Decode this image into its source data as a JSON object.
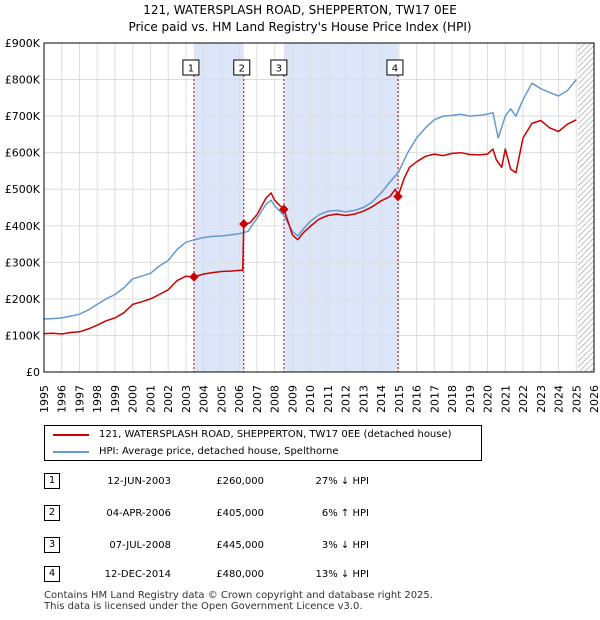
{
  "chart_data": {
    "type": "line",
    "title": "121, WATERSPLASH ROAD, SHEPPERTON, TW17 0EE",
    "subtitle": "Price paid vs. HM Land Registry's House Price Index (HPI)",
    "xlim": [
      1995,
      2026
    ],
    "ylim": [
      0,
      900000
    ],
    "y_ticks": [
      0,
      100000,
      200000,
      300000,
      400000,
      500000,
      600000,
      700000,
      800000,
      900000
    ],
    "y_tick_labels": [
      "£0",
      "£100K",
      "£200K",
      "£300K",
      "£400K",
      "£500K",
      "£600K",
      "£700K",
      "£800K",
      "£900K"
    ],
    "x_ticks": [
      1995,
      1996,
      1997,
      1998,
      1999,
      2000,
      2001,
      2002,
      2003,
      2004,
      2005,
      2006,
      2007,
      2008,
      2009,
      2010,
      2011,
      2012,
      2013,
      2014,
      2015,
      2016,
      2017,
      2018,
      2019,
      2020,
      2021,
      2022,
      2023,
      2024,
      2025,
      2026
    ],
    "x_tick_labels": [
      "1995",
      "1996",
      "1997",
      "1998",
      "1999",
      "2000",
      "2001",
      "2002",
      "2003",
      "2004",
      "2005",
      "2006",
      "2007",
      "2008",
      "2009",
      "2010",
      "2011",
      "2012",
      "2013",
      "2014",
      "2015",
      "2016",
      "2017",
      "2018",
      "2019",
      "2020",
      "2021",
      "2022",
      "2023",
      "2024",
      "2025",
      "2026"
    ],
    "shaded_ranges": [
      [
        2003.45,
        2006.26
      ],
      [
        2008.52,
        2014.95
      ]
    ],
    "hatched_from": 2025.1,
    "series": [
      {
        "name": "121, WATERSPLASH ROAD, SHEPPERTON, TW17 0EE (detached house)",
        "color": "#cc0000",
        "x": [
          1995.0,
          1995.5,
          1996.0,
          1996.5,
          1997.0,
          1997.5,
          1998.0,
          1998.5,
          1999.0,
          1999.5,
          2000.0,
          2000.5,
          2001.0,
          2001.5,
          2002.0,
          2002.5,
          2003.0,
          2003.45,
          2004.0,
          2004.5,
          2005.0,
          2005.5,
          2006.0,
          2006.2,
          2006.26,
          2006.6,
          2007.0,
          2007.5,
          2007.8,
          2008.0,
          2008.3,
          2008.52,
          2008.8,
          2009.0,
          2009.3,
          2009.6,
          2010.0,
          2010.5,
          2011.0,
          2011.5,
          2012.0,
          2012.5,
          2013.0,
          2013.5,
          2014.0,
          2014.5,
          2014.8,
          2014.95,
          2015.3,
          2015.6,
          2016.0,
          2016.5,
          2017.0,
          2017.5,
          2018.0,
          2018.5,
          2019.0,
          2019.5,
          2020.0,
          2020.3,
          2020.5,
          2020.8,
          2021.0,
          2021.3,
          2021.6,
          2022.0,
          2022.5,
          2023.0,
          2023.5,
          2024.0,
          2024.5,
          2025.0
        ],
        "values": [
          105000,
          106000,
          104000,
          108000,
          110000,
          118000,
          128000,
          140000,
          148000,
          162000,
          185000,
          192000,
          200000,
          212000,
          225000,
          250000,
          262000,
          260000,
          268000,
          272000,
          275000,
          276000,
          278000,
          278000,
          405000,
          408000,
          430000,
          475000,
          490000,
          470000,
          455000,
          445000,
          405000,
          375000,
          362000,
          380000,
          398000,
          418000,
          428000,
          432000,
          428000,
          432000,
          440000,
          452000,
          468000,
          480000,
          500000,
          480000,
          530000,
          560000,
          575000,
          590000,
          596000,
          592000,
          598000,
          600000,
          595000,
          594000,
          596000,
          610000,
          580000,
          560000,
          610000,
          555000,
          545000,
          640000,
          680000,
          688000,
          668000,
          658000,
          678000,
          690000
        ]
      },
      {
        "name": "HPI: Average price, detached house, Spelthorne",
        "color": "#6699cc",
        "x": [
          1995.0,
          1995.5,
          1996.0,
          1996.5,
          1997.0,
          1997.5,
          1998.0,
          1998.5,
          1999.0,
          1999.5,
          2000.0,
          2000.5,
          2001.0,
          2001.5,
          2002.0,
          2002.5,
          2003.0,
          2003.5,
          2004.0,
          2004.5,
          2005.0,
          2005.5,
          2006.0,
          2006.5,
          2007.0,
          2007.5,
          2007.8,
          2008.0,
          2008.5,
          2009.0,
          2009.3,
          2009.6,
          2010.0,
          2010.5,
          2011.0,
          2011.5,
          2012.0,
          2012.5,
          2013.0,
          2013.5,
          2014.0,
          2014.5,
          2015.0,
          2015.5,
          2016.0,
          2016.5,
          2017.0,
          2017.5,
          2018.0,
          2018.5,
          2019.0,
          2019.5,
          2020.0,
          2020.3,
          2020.6,
          2021.0,
          2021.3,
          2021.6,
          2022.0,
          2022.5,
          2023.0,
          2023.5,
          2024.0,
          2024.5,
          2025.0
        ],
        "values": [
          145000,
          146000,
          148000,
          153000,
          158000,
          170000,
          185000,
          200000,
          212000,
          230000,
          255000,
          262000,
          270000,
          290000,
          305000,
          335000,
          355000,
          362000,
          368000,
          371000,
          372000,
          375000,
          378000,
          385000,
          420000,
          458000,
          470000,
          455000,
          430000,
          385000,
          372000,
          390000,
          412000,
          430000,
          440000,
          442000,
          438000,
          442000,
          450000,
          465000,
          490000,
          520000,
          548000,
          600000,
          640000,
          668000,
          690000,
          700000,
          702000,
          705000,
          700000,
          702000,
          705000,
          710000,
          640000,
          700000,
          720000,
          700000,
          745000,
          790000,
          775000,
          765000,
          755000,
          770000,
          800000
        ]
      }
    ],
    "sales": [
      {
        "label": "1",
        "date": "12-JUN-2003",
        "x": 2003.45,
        "value": 260000,
        "price": "£260,000",
        "hpi": "27% ↓ HPI"
      },
      {
        "label": "2",
        "date": "04-APR-2006",
        "x": 2006.26,
        "value": 405000,
        "price": "£405,000",
        "hpi": "6% ↑ HPI"
      },
      {
        "label": "3",
        "date": "07-JUL-2008",
        "x": 2008.52,
        "value": 445000,
        "price": "£445,000",
        "hpi": "3% ↓ HPI"
      },
      {
        "label": "4",
        "date": "12-DEC-2014",
        "x": 2014.95,
        "value": 480000,
        "price": "£480,000",
        "hpi": "13% ↓ HPI"
      }
    ]
  },
  "colors": {
    "red": "#cc0000",
    "blue": "#6699cc",
    "shade": "#dde6f8",
    "grid": "#dddddd"
  },
  "footer": {
    "line1": "Contains HM Land Registry data © Crown copyright and database right 2025.",
    "line2": "This data is licensed under the Open Government Licence v3.0."
  }
}
